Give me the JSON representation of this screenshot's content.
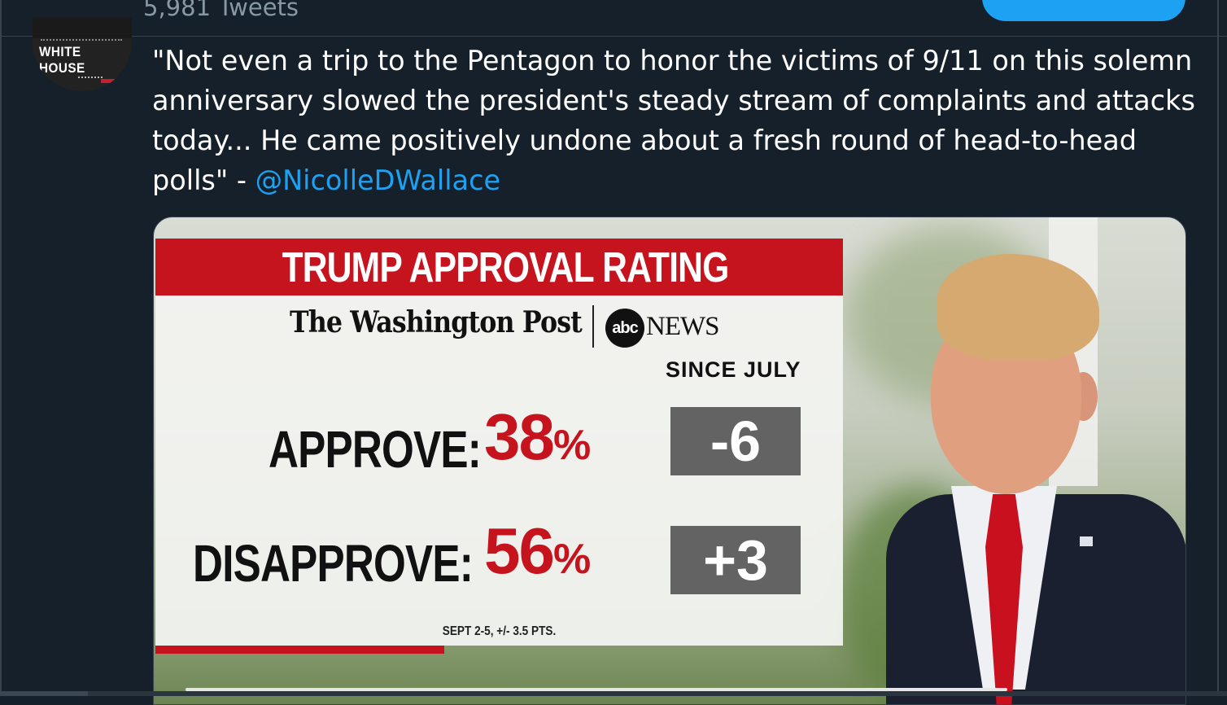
{
  "header": {
    "tweet_count": "5,981 Tweets"
  },
  "avatar": {
    "label": "WHITE HOUSE"
  },
  "tweet": {
    "text": "\"Not even a trip to the Pentagon to honor the victims of 9/11 on this solemn anniversary slowed the president's steady stream of complaints and attacks today... He came positively undone about a fresh round of head-to-head polls\" - ",
    "mention": "@NicolleDWallace"
  },
  "media": {
    "title": "TRUMP APPROVAL RATING",
    "source_1": "The Washington Post",
    "source_2_logo": "abc",
    "source_2": "NEWS",
    "since_label": "SINCE JULY",
    "rows": [
      {
        "label": "APPROVE:",
        "value": "38",
        "unit": "%",
        "change": "-6"
      },
      {
        "label": "DISAPPROVE:",
        "value": "56",
        "unit": "%",
        "change": "+3"
      }
    ],
    "footnote": "SEPT 2-5, +/- 3.5 PTS."
  },
  "colors": {
    "background": "#15202b",
    "accent": "#1da1f2",
    "graphic_red": "#c6141f",
    "change_box": "#636363"
  }
}
